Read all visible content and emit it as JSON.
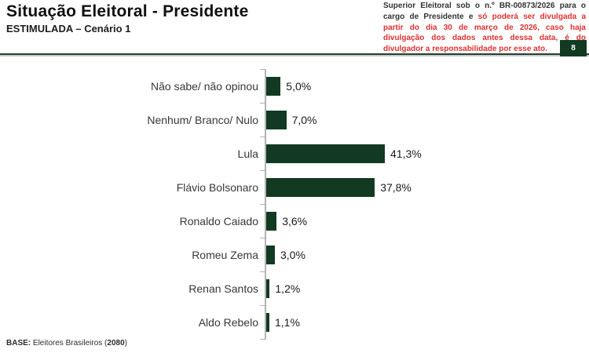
{
  "header": {
    "title": "Situação Eleitoral - Presidente",
    "subtitle": "ESTIMULADA – Cenário 1",
    "disclaimer_black": "Superior Eleitoral sob o n.º BR-00873/2026 para o cargo de Presidente e ",
    "disclaimer_red": "só poderá ser divulgada a partir do dia 30 de março de 2026, caso haja divulgação dos dados antes dessa data, é do divulgador a responsabilidade por esse ato.",
    "page_badge": "8"
  },
  "chart_data": {
    "type": "bar",
    "orientation": "horizontal",
    "title": "Situação Eleitoral - Presidente",
    "subtitle": "ESTIMULADA – Cenário 1",
    "categories": [
      "Não sabe/ não opinou",
      "Nenhum/ Branco/ Nulo",
      "Lula",
      "Flávio Bolsonaro",
      "Ronaldo Caiado",
      "Romeu Zema",
      "Renan Santos",
      "Aldo Rebelo"
    ],
    "values": [
      5.0,
      7.0,
      41.3,
      37.8,
      3.6,
      3.0,
      1.2,
      1.1
    ],
    "value_labels": [
      "5,0%",
      "7,0%",
      "41,3%",
      "37,8%",
      "3,6%",
      "3,0%",
      "1,2%",
      "1,1%"
    ],
    "unit": "%",
    "xlim": [
      0,
      45
    ],
    "grid": false,
    "legend": false,
    "bar_color": "#123a22",
    "axis_color": "#b3b3b3"
  },
  "footer": {
    "label": "BASE:",
    "text": " Eleitores Brasileiros (",
    "n": "2080",
    "suffix": ")"
  }
}
